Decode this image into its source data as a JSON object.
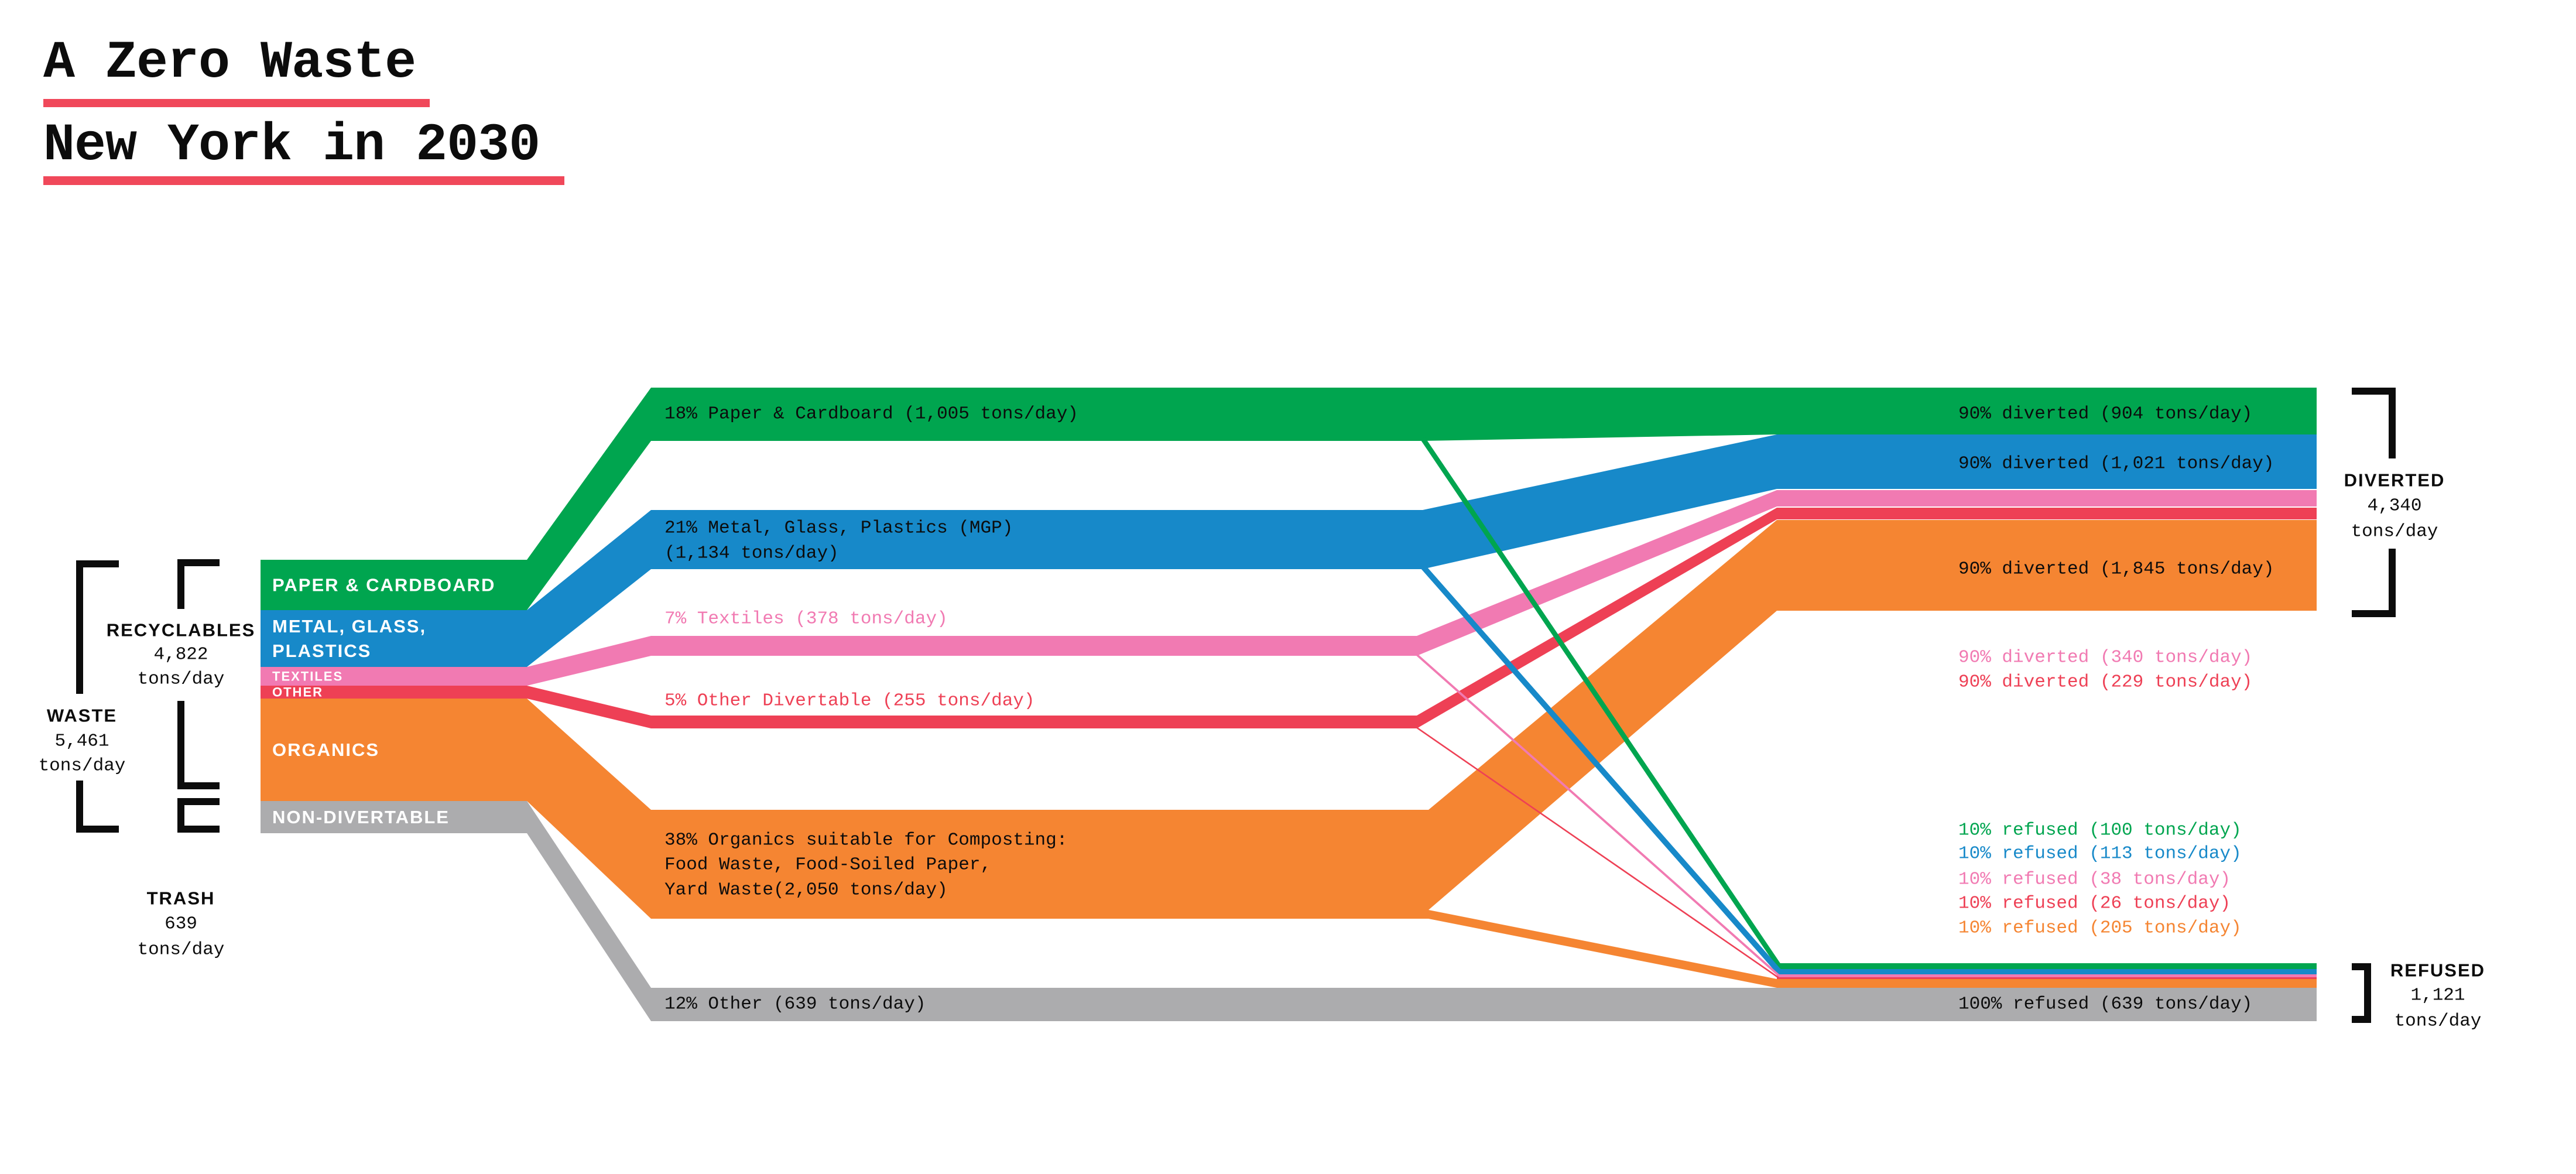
{
  "title": {
    "line1": "A Zero Waste",
    "line2": "New York in 2030"
  },
  "colors": {
    "green": "#00a54f",
    "blue": "#1789c9",
    "pink": "#f17ab2",
    "red": "#ee4055",
    "orange": "#f58532",
    "gray": "#acacae",
    "black": "#0c0c0c",
    "white": "#ffffff",
    "underline": "#f0485a"
  },
  "left_brackets": {
    "waste": {
      "name": "WASTE",
      "value": "5,461",
      "unit": "tons/day"
    },
    "recyclables": {
      "name": "RECYCLABLES",
      "value": "4,822",
      "unit": "tons/day"
    },
    "trash": {
      "name": "TRASH",
      "value": "639",
      "unit": "tons/day"
    }
  },
  "right_brackets": {
    "diverted": {
      "name": "DIVERTED",
      "value": "4,340",
      "unit": "tons/day"
    },
    "refused": {
      "name": "REFUSED",
      "value": "1,121",
      "unit": "tons/day"
    }
  },
  "chart_data": {
    "type": "sankey",
    "title": "A Zero Waste New York in 2030",
    "unit": "tons/day",
    "source_total": {
      "label": "WASTE",
      "value": 5461
    },
    "source_groups": [
      {
        "label": "RECYCLABLES",
        "value": 4822
      },
      {
        "label": "TRASH",
        "value": 639
      }
    ],
    "sink_totals": [
      {
        "label": "DIVERTED",
        "value": 4340
      },
      {
        "label": "REFUSED",
        "value": 1121
      }
    ],
    "nodes": [
      {
        "id": "paper",
        "color_key": "green",
        "value": 1005,
        "label_lines": [
          "PAPER & CARDBOARD"
        ]
      },
      {
        "id": "mgp",
        "color_key": "blue",
        "value": 1134,
        "label_lines": [
          "METAL, GLASS,",
          "PLASTICS"
        ]
      },
      {
        "id": "textiles",
        "color_key": "pink",
        "value": 378,
        "label_lines": [
          "TEXTILES"
        ],
        "small": true
      },
      {
        "id": "other",
        "color_key": "red",
        "value": 255,
        "label_lines": [
          "OTHER"
        ],
        "small": true
      },
      {
        "id": "organics",
        "color_key": "orange",
        "value": 2050,
        "label_lines": [
          "ORGANICS"
        ]
      },
      {
        "id": "nondiv",
        "color_key": "gray",
        "value": 639,
        "label_lines": [
          "NON-DIVERTABLE"
        ]
      }
    ],
    "flows": [
      {
        "node": "paper",
        "value": 1005,
        "share_pct": 18,
        "share_label_lines": [
          "18% Paper & Cardboard (1,005 tons/day)"
        ],
        "diverted": 904,
        "diverted_label": "90% diverted (904 tons/day)",
        "refused": 100,
        "refused_label": "10% refused (100 tons/day)"
      },
      {
        "node": "mgp",
        "value": 1134,
        "share_pct": 21,
        "share_label_lines": [
          "21% Metal, Glass, Plastics (MGP)",
          "(1,134 tons/day)"
        ],
        "diverted": 1021,
        "diverted_label": "90% diverted (1,021 tons/day)",
        "refused": 113,
        "refused_label": "10% refused (113 tons/day)"
      },
      {
        "node": "textiles",
        "value": 378,
        "share_pct": 7,
        "share_label_lines": [
          "7% Textiles (378 tons/day)"
        ],
        "diverted": 340,
        "diverted_label": "90% diverted (340 tons/day)",
        "refused": 38,
        "refused_label": "10% refused (38 tons/day)"
      },
      {
        "node": "other",
        "value": 255,
        "share_pct": 5,
        "share_label_lines": [
          "5% Other Divertable (255 tons/day)"
        ],
        "diverted": 229,
        "diverted_label": "90% diverted (229 tons/day)",
        "refused": 26,
        "refused_label": "10% refused (26 tons/day)"
      },
      {
        "node": "organics",
        "value": 2050,
        "share_pct": 38,
        "share_label_lines": [
          "38% Organics suitable for Composting:",
          "Food Waste, Food-Soiled Paper,",
          "Yard Waste(2,050 tons/day)"
        ],
        "diverted": 1845,
        "diverted_label": "90% diverted (1,845 tons/day)",
        "refused": 205,
        "refused_label": "10% refused (205 tons/day)"
      },
      {
        "node": "nondiv",
        "value": 639,
        "share_pct": 12,
        "share_label_lines": [
          "12% Other (639 tons/day)"
        ],
        "diverted": 0,
        "diverted_label": "",
        "refused": 639,
        "refused_label": "100% refused (639 tons/day)"
      }
    ]
  }
}
